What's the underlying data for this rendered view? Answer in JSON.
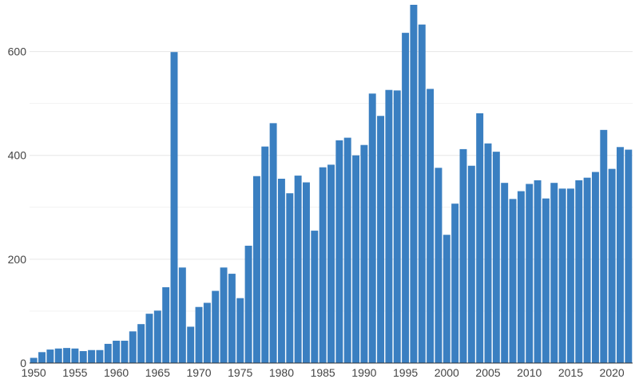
{
  "chart_data": {
    "type": "bar",
    "title": "",
    "xlabel": "",
    "ylabel": "",
    "color": "#3a7fc1",
    "grid": true,
    "ylim": [
      0,
      690
    ],
    "y_ticks": [
      0,
      200,
      400,
      600
    ],
    "x_tick_labels": [
      "1950",
      "1955",
      "1960",
      "1965",
      "1970",
      "1975",
      "1980",
      "1985",
      "1990",
      "1995",
      "2000",
      "2005",
      "2010",
      "2015",
      "2020"
    ],
    "x": [
      1950,
      1951,
      1952,
      1953,
      1954,
      1955,
      1956,
      1957,
      1958,
      1959,
      1960,
      1961,
      1962,
      1963,
      1964,
      1965,
      1966,
      1967,
      1968,
      1969,
      1970,
      1971,
      1972,
      1973,
      1974,
      1975,
      1976,
      1977,
      1978,
      1979,
      1980,
      1981,
      1982,
      1983,
      1984,
      1985,
      1986,
      1987,
      1988,
      1989,
      1990,
      1991,
      1992,
      1993,
      1994,
      1995,
      1996,
      1997,
      1998,
      1999,
      2000,
      2001,
      2002,
      2003,
      2004,
      2005,
      2006,
      2007,
      2008,
      2009,
      2010,
      2011,
      2012,
      2013,
      2014,
      2015,
      2016,
      2017,
      2018,
      2019,
      2020,
      2021,
      2022
    ],
    "values": [
      10,
      21,
      26,
      28,
      29,
      28,
      23,
      25,
      25,
      37,
      43,
      43,
      61,
      75,
      95,
      101,
      146,
      599,
      184,
      70,
      108,
      116,
      139,
      184,
      172,
      125,
      226,
      360,
      417,
      462,
      355,
      327,
      361,
      348,
      255,
      377,
      382,
      429,
      434,
      400,
      420,
      519,
      476,
      526,
      525,
      636,
      690,
      652,
      528,
      376,
      247,
      307,
      412,
      380,
      481,
      423,
      407,
      347,
      316,
      331,
      345,
      352,
      317,
      347,
      336,
      336,
      352,
      357,
      368,
      449,
      374,
      416,
      411
    ]
  }
}
